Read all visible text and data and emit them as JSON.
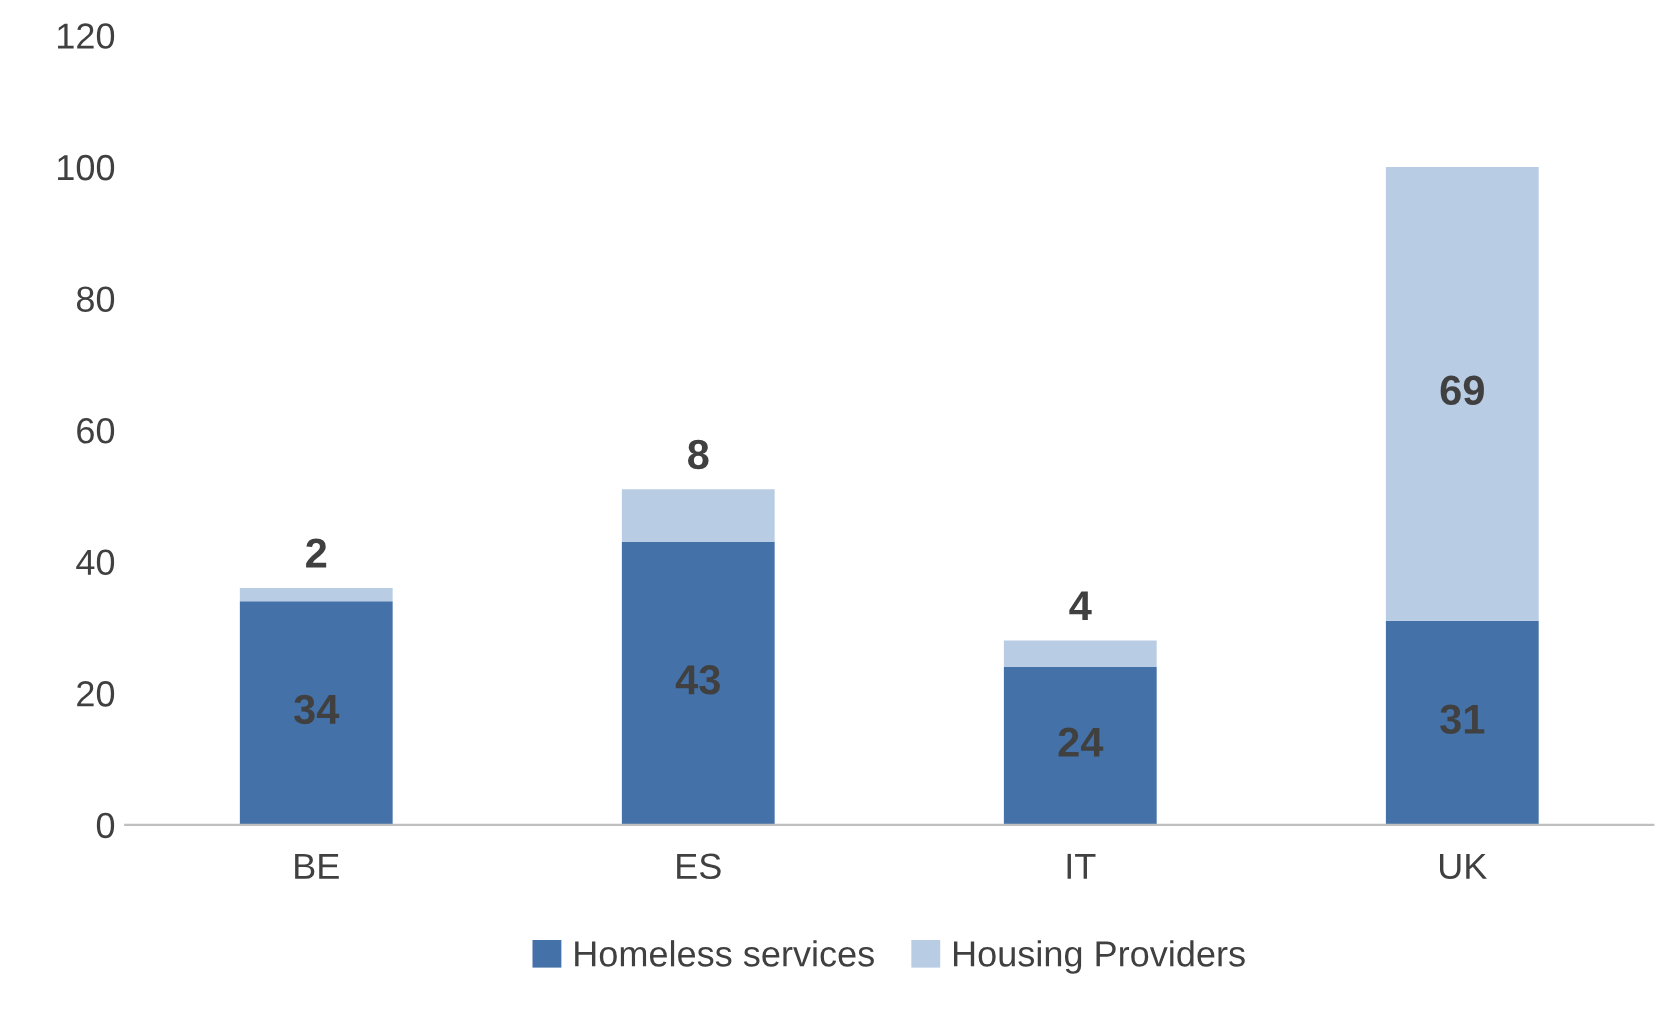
{
  "chart_data": {
    "type": "bar",
    "stacked": true,
    "categories": [
      "BE",
      "ES",
      "IT",
      "UK"
    ],
    "series": [
      {
        "name": "Homeless services",
        "color": "#4472a8",
        "values": [
          34,
          43,
          24,
          31
        ]
      },
      {
        "name": "Housing Providers",
        "color": "#b8cce4",
        "values": [
          2,
          8,
          4,
          69
        ]
      }
    ],
    "ylim": [
      0,
      120
    ],
    "yticks": [
      0,
      20,
      40,
      60,
      80,
      100,
      120
    ],
    "data_labels": true,
    "legend": "bottom",
    "grid": false
  }
}
